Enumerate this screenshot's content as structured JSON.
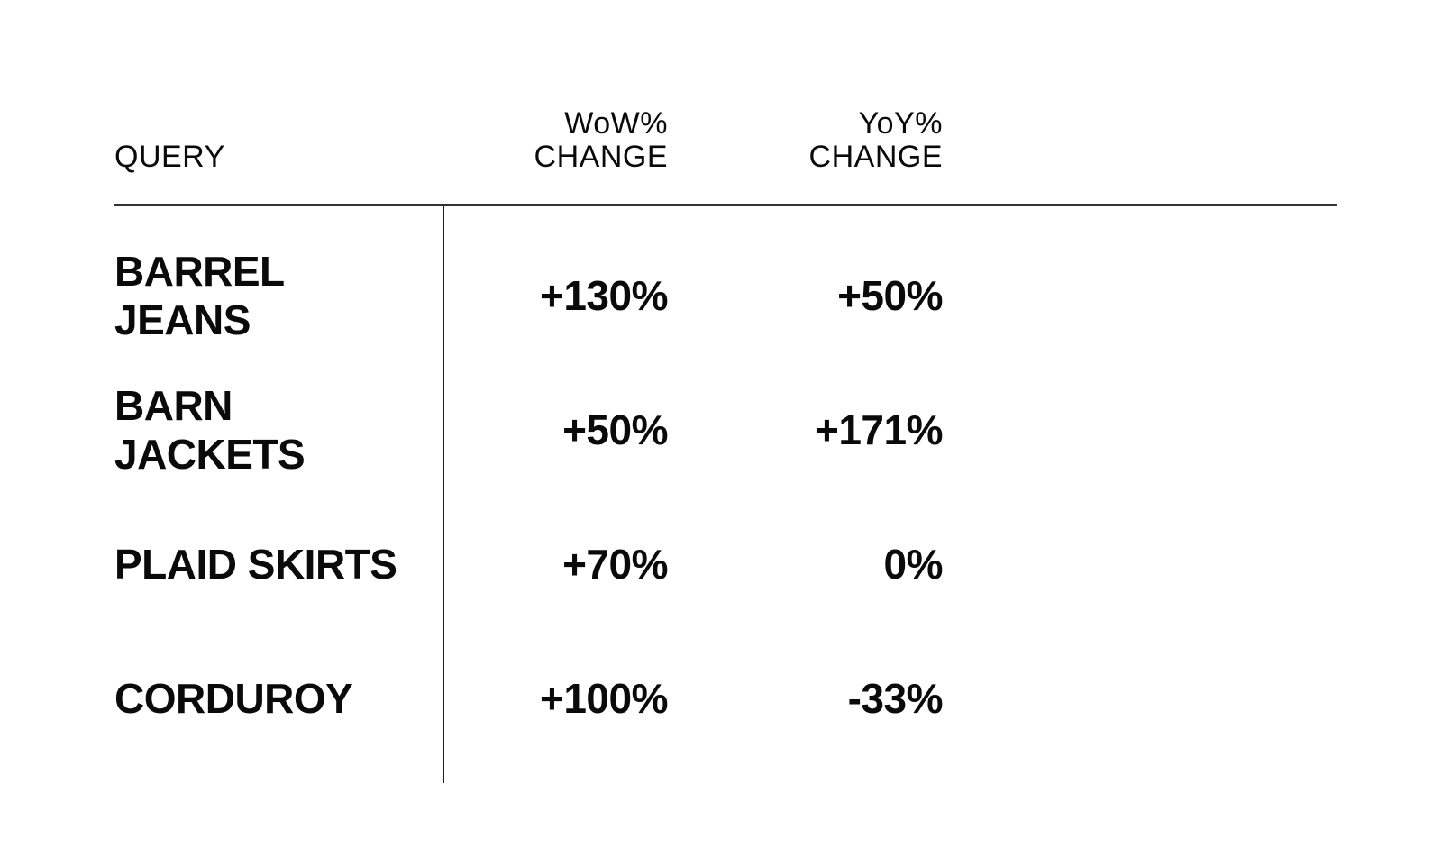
{
  "page": {
    "background": "#ffffff",
    "text_color": "#0a0a0a",
    "rule_horizontal_color": "#333333",
    "rule_vertical_color": "#1c1c1c"
  },
  "chart_data": {
    "type": "table",
    "title": "",
    "columns": [
      "QUERY",
      "WoW% CHANGE",
      "YoY% CHANGE"
    ],
    "header": {
      "query": "QUERY",
      "wow_line1": "WoW%",
      "wow_line2": "CHANGE",
      "yoy_line1": "YoY%",
      "yoy_line2": "CHANGE"
    },
    "rows": [
      {
        "query": "BARREL JEANS",
        "wow": "+130%",
        "yoy": "+50%"
      },
      {
        "query": "BARN JACKETS",
        "wow": "+50%",
        "yoy": "+171%"
      },
      {
        "query": "PLAID SKIRTS",
        "wow": "+70%",
        "yoy": "0%"
      },
      {
        "query": "CORDUROY",
        "wow": "+100%",
        "yoy": "-33%"
      }
    ],
    "values_numeric": {
      "wow_pct_change": [
        130,
        50,
        70,
        100
      ],
      "yoy_pct_change": [
        50,
        171,
        0,
        -33
      ]
    }
  }
}
